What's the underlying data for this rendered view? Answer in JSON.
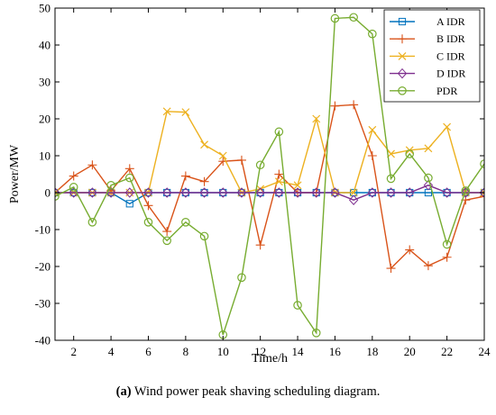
{
  "chart_data": {
    "type": "line",
    "xlabel": "Time/h",
    "ylabel": "Power/MW",
    "xlim": [
      1,
      24
    ],
    "ylim": [
      -40,
      50
    ],
    "xticks": [
      2,
      4,
      6,
      8,
      10,
      12,
      14,
      16,
      18,
      20,
      22,
      24
    ],
    "yticks": [
      -40,
      -30,
      -20,
      -10,
      0,
      10,
      20,
      30,
      40,
      50
    ],
    "grid": false,
    "legend_position": "top-right",
    "x": [
      1,
      2,
      3,
      4,
      5,
      6,
      7,
      8,
      9,
      10,
      11,
      12,
      13,
      14,
      15,
      16,
      17,
      18,
      19,
      20,
      21,
      22,
      23,
      24
    ],
    "series": [
      {
        "name": "A IDR",
        "color": "#0072BD",
        "marker": "square",
        "values": [
          0,
          0,
          0,
          0,
          -3,
          0,
          0,
          0,
          0,
          0,
          0,
          0,
          0,
          0,
          0,
          0,
          0,
          0,
          0,
          0,
          0,
          0,
          0,
          0
        ]
      },
      {
        "name": "B IDR",
        "color": "#D95319",
        "marker": "plus",
        "values": [
          0,
          4.5,
          7.5,
          0.5,
          6.5,
          -3.5,
          -10.5,
          4.5,
          3,
          8.5,
          8.8,
          -14.2,
          5,
          0,
          0,
          23.5,
          23.8,
          10,
          -20.5,
          -15.5,
          -19.8,
          -17.5,
          -2,
          -1
        ]
      },
      {
        "name": "C IDR",
        "color": "#EDB120",
        "marker": "x",
        "values": [
          0,
          0,
          0,
          0,
          0,
          0,
          22,
          21.8,
          13,
          10,
          0,
          1,
          3,
          2,
          20,
          0,
          0,
          17,
          10.5,
          11.5,
          12,
          17.8,
          0,
          0
        ]
      },
      {
        "name": "D IDR",
        "color": "#7E2F8E",
        "marker": "diamond",
        "values": [
          0,
          0,
          0,
          0,
          0,
          0,
          0,
          0,
          0,
          0,
          0,
          0,
          0,
          0,
          0,
          0,
          -2,
          0,
          0,
          0,
          2,
          0,
          0,
          0
        ]
      },
      {
        "name": "PDR",
        "color": "#77AC30",
        "marker": "circle",
        "values": [
          -1,
          1.5,
          -8,
          2,
          4,
          -8,
          -13,
          -8,
          -11.8,
          -38.5,
          -23,
          7.5,
          16.5,
          -30.5,
          -38,
          47.2,
          47.5,
          43,
          3.8,
          10.5,
          4,
          -14,
          0.5,
          7.8
        ]
      }
    ]
  },
  "caption": {
    "label": "(a)",
    "text": " Wind power peak shaving scheduling diagram."
  }
}
